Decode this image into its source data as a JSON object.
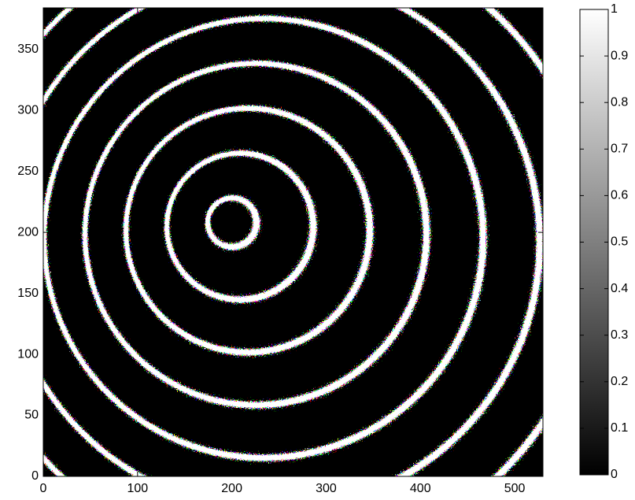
{
  "chart_data": {
    "type": "image",
    "xlim": [
      0,
      530
    ],
    "ylim": [
      0,
      384
    ],
    "xticks": [
      0,
      100,
      200,
      300,
      400,
      500
    ],
    "yticks": [
      0,
      50,
      100,
      150,
      200,
      250,
      300,
      350
    ],
    "colormap": "gray",
    "clim": [
      0,
      1
    ],
    "cticks": [
      0,
      0.1,
      0.2,
      0.3,
      0.4,
      0.5,
      0.6,
      0.7,
      0.8,
      0.9,
      1
    ]
  }
}
